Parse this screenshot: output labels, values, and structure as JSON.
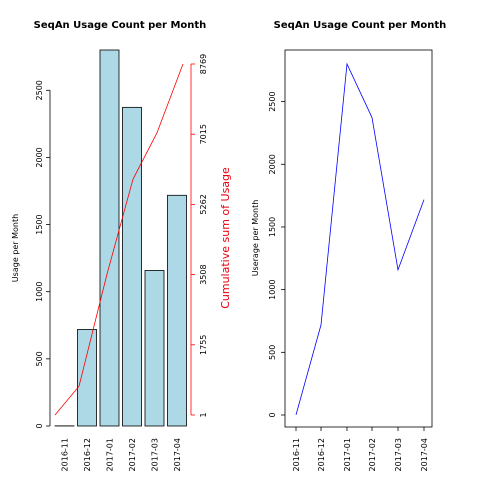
{
  "chart_data": [
    {
      "type": "bar",
      "title": "SeqAn Usage Count per Month",
      "ylabel": "Usage per Month",
      "categories": [
        "2016-11",
        "2016-12",
        "2017-01",
        "2017-02",
        "2017-03",
        "2017-04"
      ],
      "values": [
        1,
        719,
        2800,
        2373,
        1158,
        1718
      ],
      "ylim": [
        0,
        2800
      ],
      "yticks": [
        0,
        500,
        1000,
        1500,
        2000,
        2500
      ],
      "bar_color": "#add8e6",
      "secondary_axis": {
        "type": "line",
        "label": "Cumulative sum of Usage",
        "color": "#ff0000",
        "values": [
          1,
          720,
          3520,
          5893,
          7051,
          8769
        ],
        "ticks": [
          1,
          1755,
          3508,
          5262,
          7015,
          8769
        ]
      }
    },
    {
      "type": "line",
      "title": "SeqAn Usage Count per Month",
      "ylabel": "Userage per Month",
      "categories": [
        "2016-11",
        "2016-12",
        "2017-01",
        "2017-02",
        "2017-03",
        "2017-04"
      ],
      "values": [
        1,
        719,
        2800,
        2373,
        1158,
        1718
      ],
      "ylim": [
        0,
        2800
      ],
      "yticks": [
        0,
        500,
        1000,
        1500,
        2000,
        2500
      ],
      "line_color": "#0000ff"
    }
  ]
}
